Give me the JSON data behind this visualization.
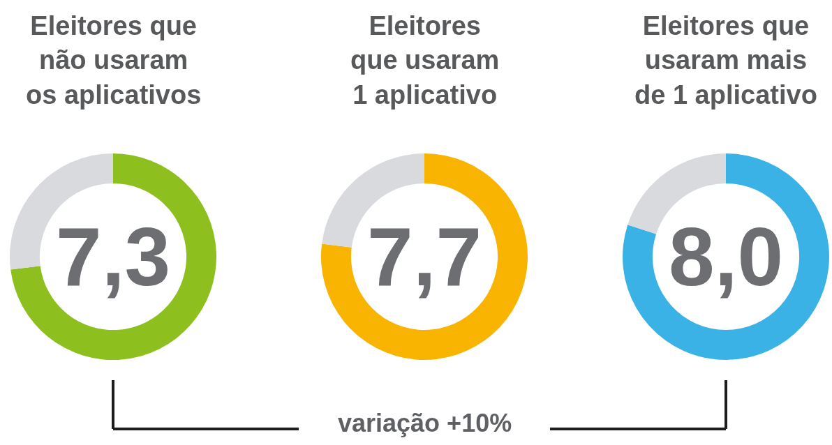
{
  "chart_data": [
    {
      "type": "donut",
      "title": "Eleitores que\nnão usaram\nos aplicativos",
      "categories": [
        null,
        null
      ],
      "values": [
        7.3,
        2.7
      ],
      "colors": [
        "#8dbf1e",
        "#d9dadd"
      ],
      "value_labels": [
        "7,3",
        null
      ]
    },
    {
      "type": "donut",
      "title": "Eleitores\nque usaram\n1 aplicativo",
      "categories": [
        null,
        null
      ],
      "values": [
        7.7,
        2.3
      ],
      "colors": [
        "#f8b400",
        "#d9dadd"
      ],
      "value_labels": [
        "7,7",
        null
      ],
      "annotations": [
        "variação +10%"
      ]
    },
    {
      "type": "donut",
      "title": "Eleitores que\nusaram mais\nde 1 aplicativo",
      "categories": [
        null,
        null
      ],
      "values": [
        8.0,
        2.0
      ],
      "colors": [
        "#3bb2e6",
        "#d9dadd"
      ],
      "value_labels": [
        "8,0",
        null
      ]
    }
  ]
}
